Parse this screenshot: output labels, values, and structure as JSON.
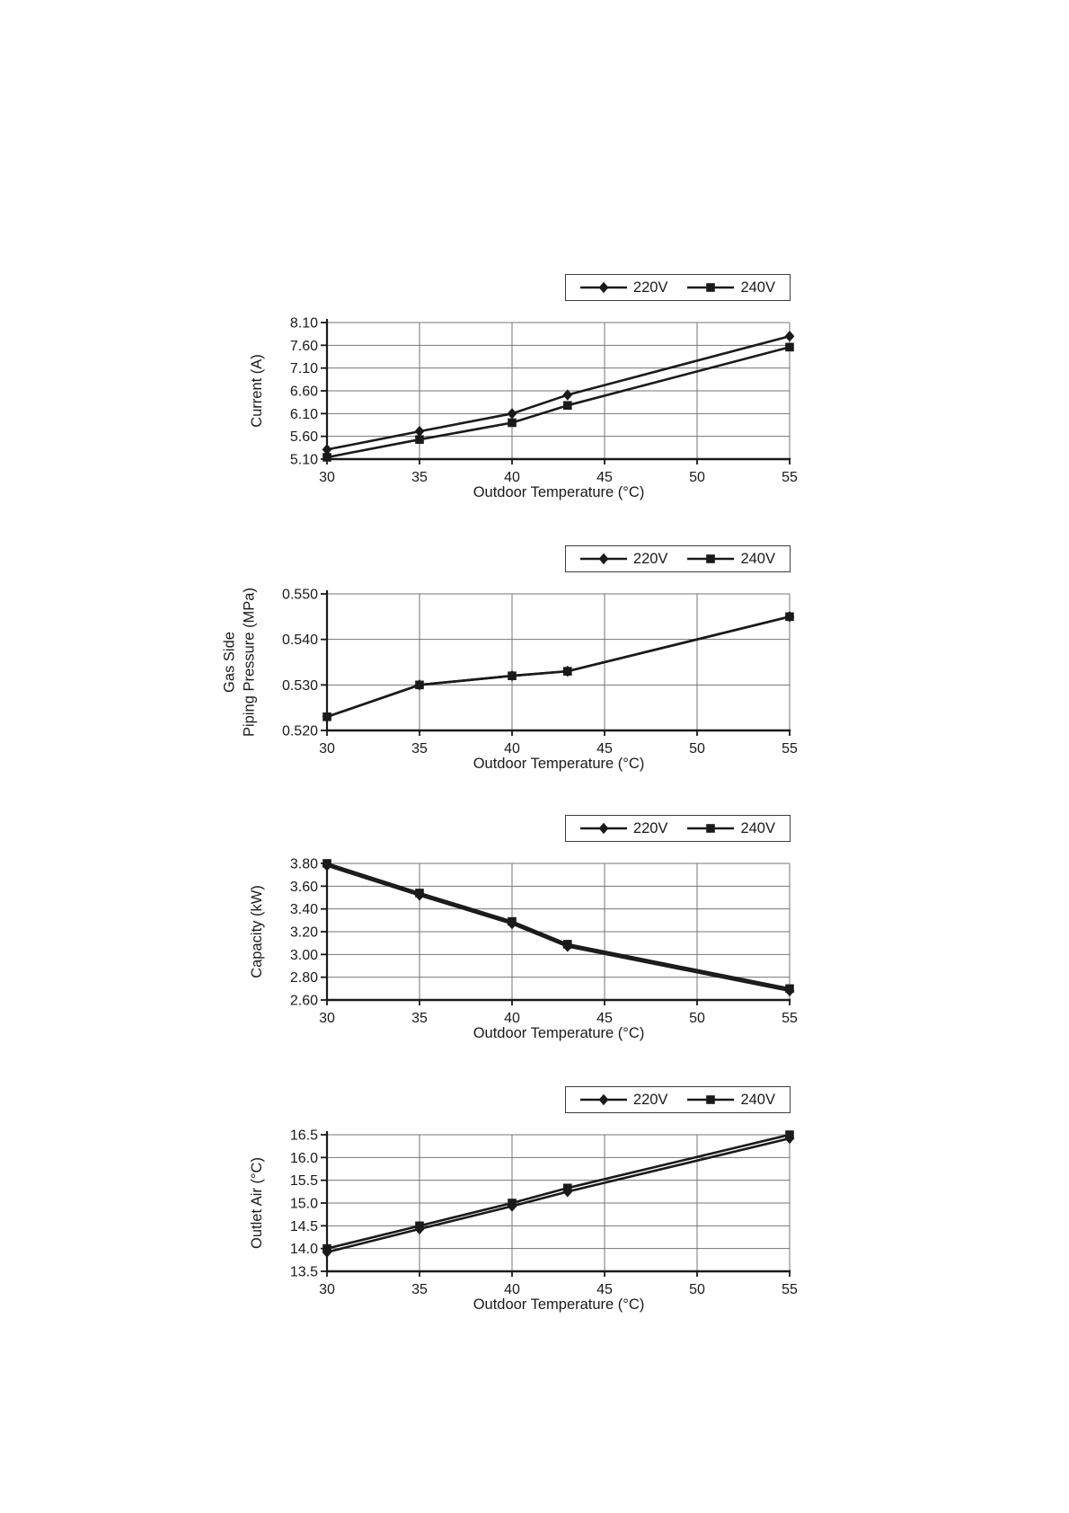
{
  "page": {
    "background": "#ffffff"
  },
  "colors": {
    "line": "#1a1a1a",
    "grid": "#757575",
    "axis": "#1a1a1a",
    "text": "#1a1a1a",
    "legend_border": "#3c3c3c",
    "background": "#ffffff"
  },
  "chart_data": [
    {
      "type": "line",
      "title": "",
      "xlabel": "Outdoor Temperature (°C)",
      "ylabel": "Current (A)",
      "x": [
        30,
        35,
        40,
        43,
        55
      ],
      "xticks": [
        30,
        35,
        40,
        45,
        50,
        55
      ],
      "xlim": [
        30,
        55
      ],
      "ylim": [
        5.1,
        8.1
      ],
      "yticks": [
        5.1,
        5.6,
        6.1,
        6.6,
        7.1,
        7.6,
        8.1
      ],
      "ytick_decimals": 2,
      "grid": true,
      "legend_position": "top-right",
      "series": [
        {
          "name": "220V",
          "marker": "diamond",
          "values": [
            5.31,
            5.71,
            6.1,
            6.51,
            7.8
          ]
        },
        {
          "name": "240V",
          "marker": "square",
          "values": [
            5.14,
            5.53,
            5.9,
            6.28,
            7.56
          ]
        }
      ]
    },
    {
      "type": "line",
      "title": "",
      "xlabel": "Outdoor Temperature (°C)",
      "ylabel": "Gas Side\nPiping Pressure (MPa)",
      "x": [
        30,
        35,
        40,
        43,
        55
      ],
      "xticks": [
        30,
        35,
        40,
        45,
        50,
        55
      ],
      "xlim": [
        30,
        55
      ],
      "ylim": [
        0.52,
        0.55
      ],
      "yticks": [
        0.52,
        0.53,
        0.54,
        0.55
      ],
      "ytick_decimals": 3,
      "grid": true,
      "legend_position": "top-right",
      "series": [
        {
          "name": "220V",
          "marker": "diamond",
          "values": [
            0.523,
            0.53,
            0.532,
            0.533,
            0.545
          ]
        },
        {
          "name": "240V",
          "marker": "square",
          "values": [
            0.523,
            0.53,
            0.532,
            0.533,
            0.545
          ]
        }
      ]
    },
    {
      "type": "line",
      "title": "",
      "xlabel": "Outdoor Temperature (°C)",
      "ylabel": "Capacity (kW)",
      "x": [
        30,
        35,
        40,
        43,
        55
      ],
      "xticks": [
        30,
        35,
        40,
        45,
        50,
        55
      ],
      "xlim": [
        30,
        55
      ],
      "ylim": [
        2.6,
        3.8
      ],
      "yticks": [
        2.6,
        2.8,
        3.0,
        3.2,
        3.4,
        3.6,
        3.8
      ],
      "ytick_decimals": 2,
      "grid": true,
      "legend_position": "top-right",
      "series": [
        {
          "name": "220V",
          "marker": "diamond",
          "values": [
            3.78,
            3.52,
            3.27,
            3.07,
            2.68
          ]
        },
        {
          "name": "240V",
          "marker": "square",
          "values": [
            3.8,
            3.54,
            3.29,
            3.09,
            2.7
          ]
        }
      ]
    },
    {
      "type": "line",
      "title": "",
      "xlabel": "Outdoor Temperature (°C)",
      "ylabel": "Outlet Air (°C)",
      "x": [
        30,
        35,
        40,
        43,
        55
      ],
      "xticks": [
        30,
        35,
        40,
        45,
        50,
        55
      ],
      "xlim": [
        30,
        55
      ],
      "ylim": [
        13.5,
        16.5
      ],
      "yticks": [
        13.5,
        14.0,
        14.5,
        15.0,
        15.5,
        16.0,
        16.5
      ],
      "ytick_decimals": 1,
      "grid": true,
      "legend_position": "top-right",
      "series": [
        {
          "name": "220V",
          "marker": "diamond",
          "values": [
            13.92,
            14.43,
            14.93,
            15.25,
            16.42
          ]
        },
        {
          "name": "240V",
          "marker": "square",
          "values": [
            14.0,
            14.5,
            15.0,
            15.33,
            16.5
          ]
        }
      ]
    }
  ]
}
